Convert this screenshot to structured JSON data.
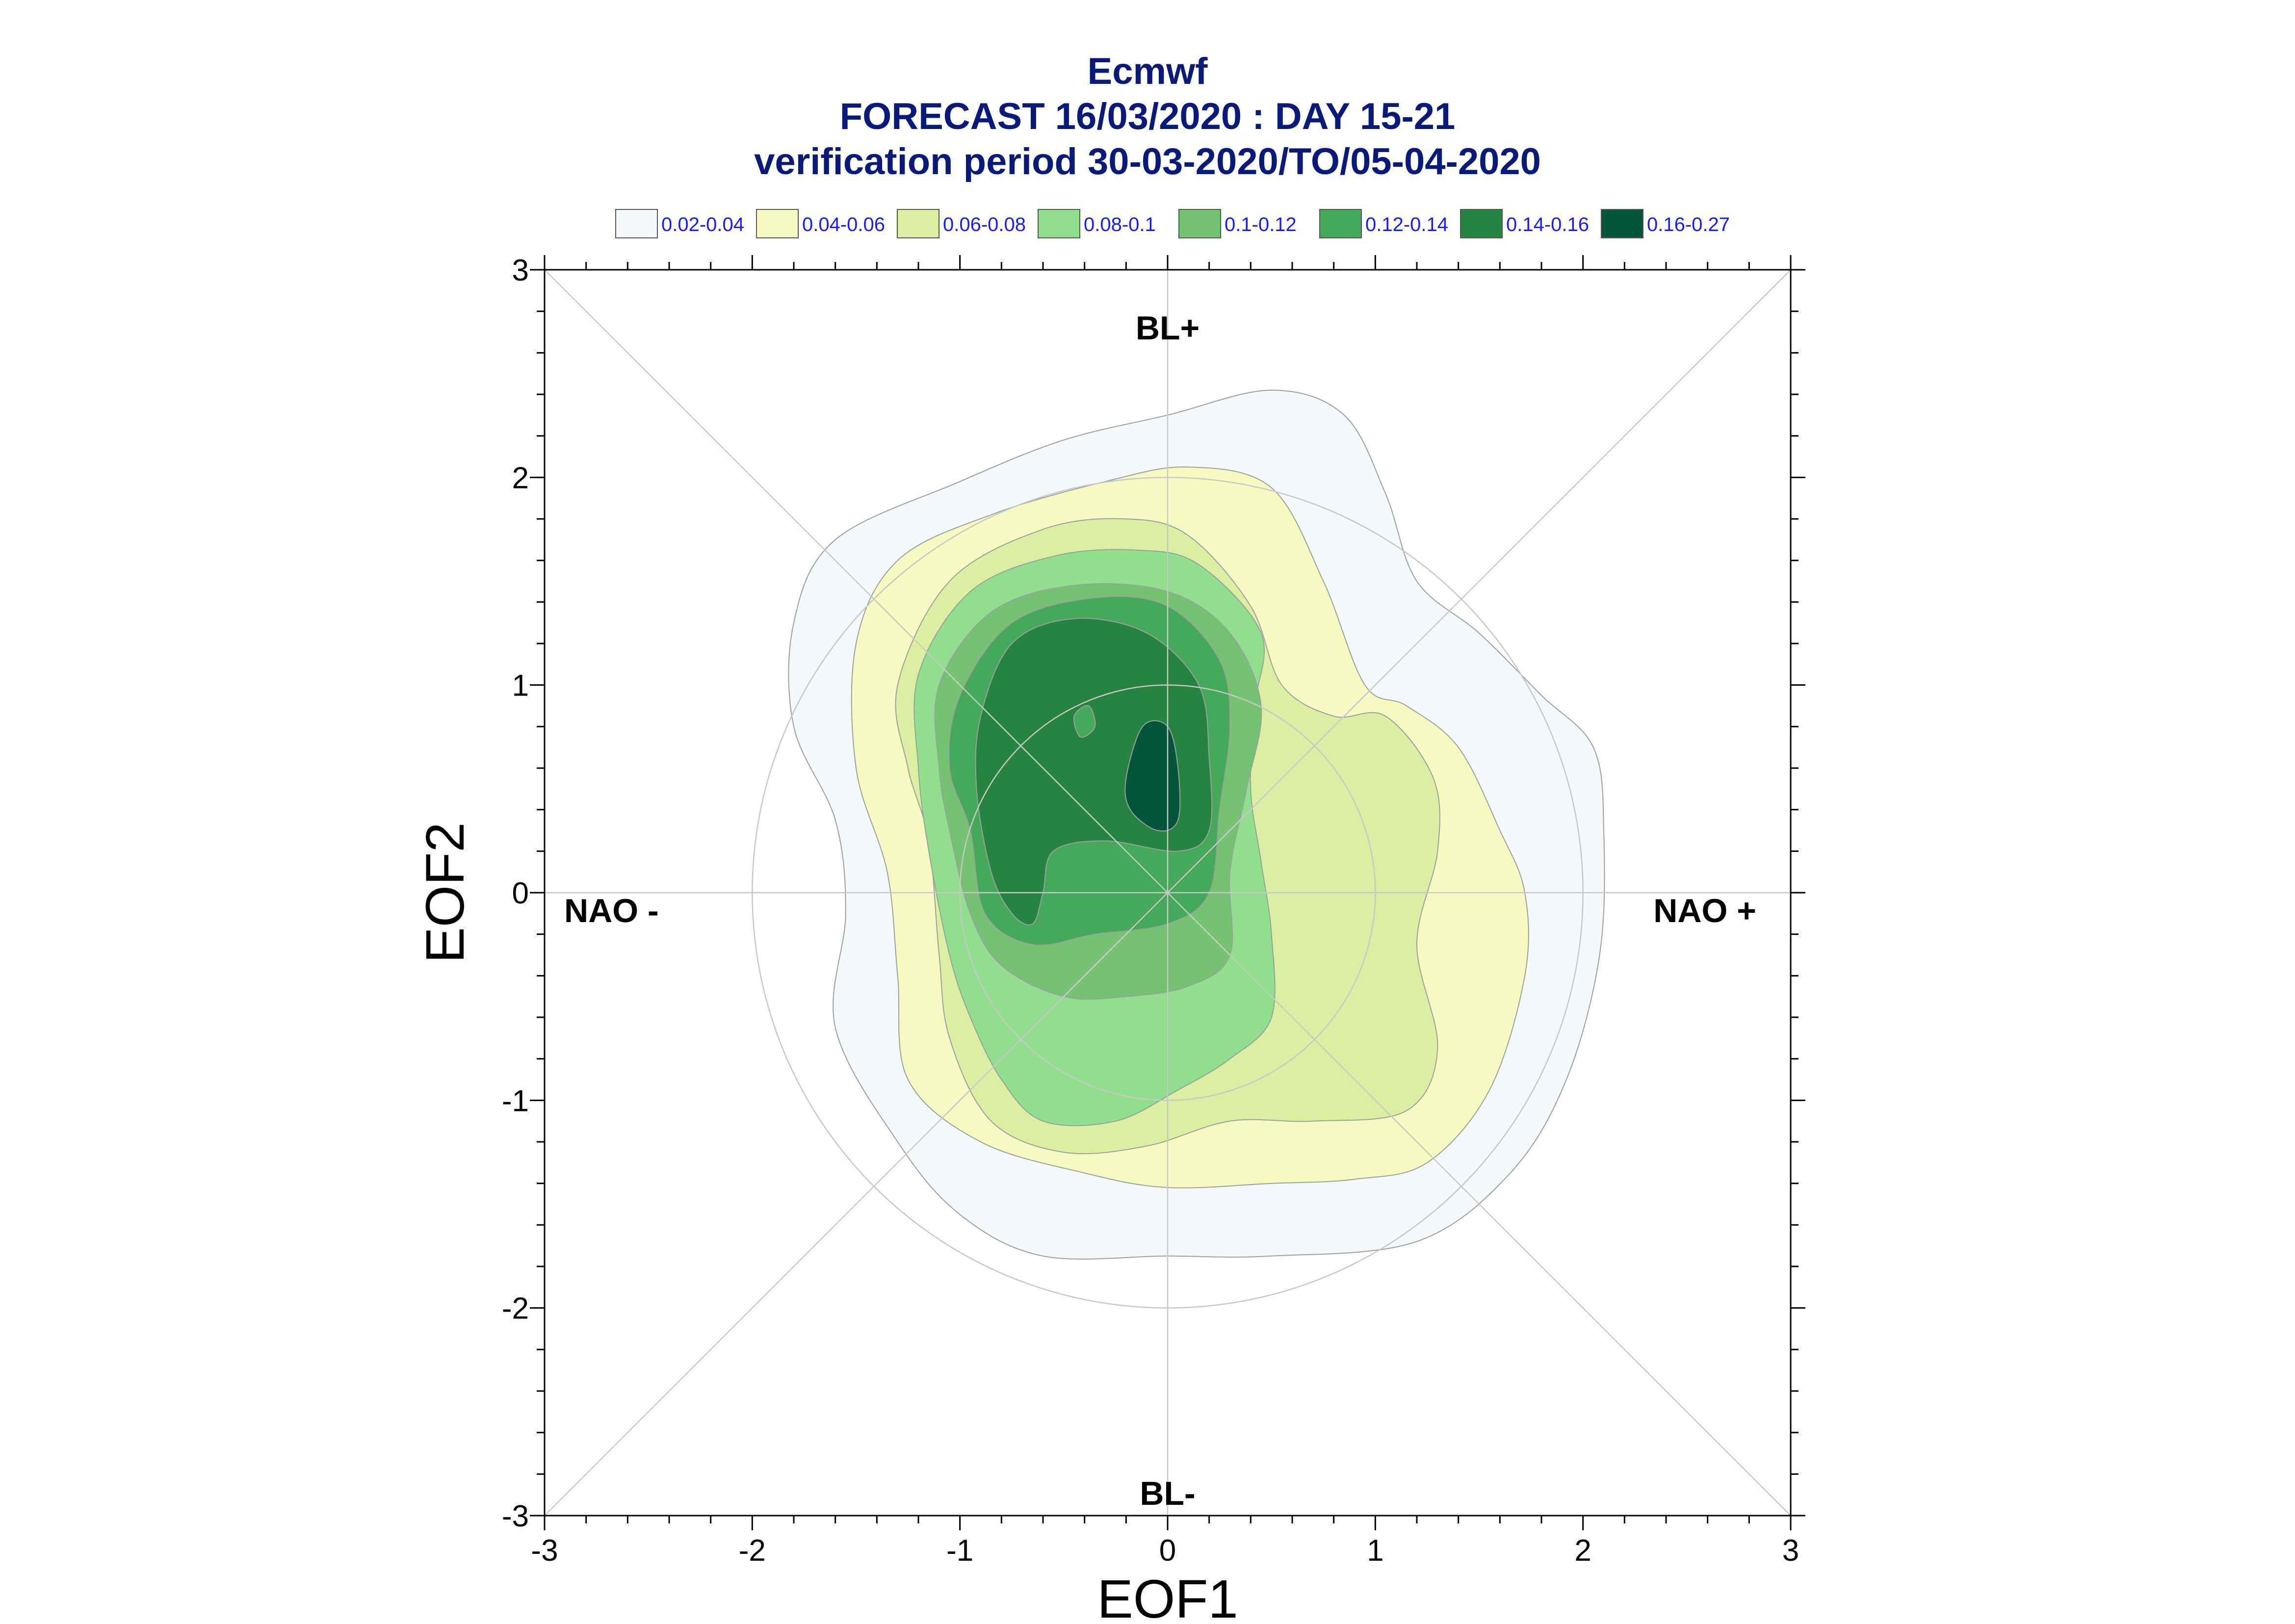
{
  "title_lines": [
    "Ecmwf",
    "FORECAST 16/03/2020 : DAY 15-21",
    "verification period 30-03-2020/TO/05-04-2020"
  ],
  "chart_data": {
    "type": "contour",
    "xlabel": "EOF1",
    "ylabel": "EOF2",
    "xlim": [
      -3,
      3
    ],
    "ylim": [
      -3,
      3
    ],
    "x_ticks": [
      "-3",
      "-2",
      "-1",
      "0",
      "1",
      "2",
      "3"
    ],
    "y_ticks": [
      "3",
      "2",
      "1",
      "0",
      "-1",
      "-2",
      "-3"
    ],
    "region_labels": {
      "top": "BL+",
      "bottom": "BL-",
      "left": "NAO -",
      "right": "NAO +"
    },
    "reference_circles_radius": [
      1,
      2
    ],
    "legend": [
      {
        "label": "0.02-0.04",
        "color": "#f4f8fb"
      },
      {
        "label": "0.04-0.06",
        "color": "#f6fac0"
      },
      {
        "label": "0.06-0.08",
        "color": "#dcee9f"
      },
      {
        "label": "0.08-0.1",
        "color": "#8fdf8c"
      },
      {
        "label": "0.1-0.12",
        "color": "#74c373"
      },
      {
        "label": "0.12-0.14",
        "color": "#44a95a"
      },
      {
        "label": "0.14-0.16",
        "color": "#268443"
      },
      {
        "label": "0.16-0.27",
        "color": "#03553b"
      }
    ],
    "contours": [
      {
        "level": "0.02-0.04",
        "points": [
          [
            -1.8,
            1.3
          ],
          [
            -1.6,
            1.7
          ],
          [
            -1.0,
            1.98
          ],
          [
            -0.5,
            2.18
          ],
          [
            0.0,
            2.3
          ],
          [
            0.5,
            2.42
          ],
          [
            0.85,
            2.3
          ],
          [
            1.05,
            1.92
          ],
          [
            1.2,
            1.5
          ],
          [
            1.5,
            1.25
          ],
          [
            1.8,
            0.95
          ],
          [
            2.05,
            0.7
          ],
          [
            2.1,
            0.3
          ],
          [
            2.08,
            -0.3
          ],
          [
            1.92,
            -0.9
          ],
          [
            1.65,
            -1.35
          ],
          [
            1.2,
            -1.68
          ],
          [
            0.5,
            -1.75
          ],
          [
            0.0,
            -1.75
          ],
          [
            -0.6,
            -1.75
          ],
          [
            -1.0,
            -1.55
          ],
          [
            -1.3,
            -1.2
          ],
          [
            -1.6,
            -0.65
          ],
          [
            -1.55,
            -0.1
          ],
          [
            -1.6,
            0.35
          ],
          [
            -1.8,
            0.8
          ]
        ]
      },
      {
        "level": "0.04-0.06",
        "points": [
          [
            -1.5,
            1.2
          ],
          [
            -1.3,
            1.6
          ],
          [
            -0.85,
            1.82
          ],
          [
            -0.3,
            1.98
          ],
          [
            0.1,
            2.05
          ],
          [
            0.5,
            1.95
          ],
          [
            0.75,
            1.5
          ],
          [
            0.95,
            1.0
          ],
          [
            1.15,
            0.9
          ],
          [
            1.4,
            0.7
          ],
          [
            1.6,
            0.3
          ],
          [
            1.72,
            0.0
          ],
          [
            1.72,
            -0.4
          ],
          [
            1.55,
            -0.95
          ],
          [
            1.25,
            -1.3
          ],
          [
            0.9,
            -1.38
          ],
          [
            0.5,
            -1.4
          ],
          [
            0.0,
            -1.42
          ],
          [
            -0.4,
            -1.35
          ],
          [
            -0.9,
            -1.2
          ],
          [
            -1.25,
            -0.9
          ],
          [
            -1.3,
            -0.4
          ],
          [
            -1.35,
            0.1
          ],
          [
            -1.5,
            0.6
          ]
        ]
      },
      {
        "level": "0.06-0.08",
        "points": [
          [
            -1.3,
            1.0
          ],
          [
            -1.05,
            1.5
          ],
          [
            -0.6,
            1.75
          ],
          [
            -0.2,
            1.8
          ],
          [
            0.1,
            1.72
          ],
          [
            0.4,
            1.38
          ],
          [
            0.55,
            1.0
          ],
          [
            0.8,
            0.85
          ],
          [
            1.05,
            0.85
          ],
          [
            1.28,
            0.55
          ],
          [
            1.3,
            0.2
          ],
          [
            1.2,
            -0.25
          ],
          [
            1.3,
            -0.75
          ],
          [
            1.15,
            -1.05
          ],
          [
            0.7,
            -1.1
          ],
          [
            0.3,
            -1.1
          ],
          [
            -0.1,
            -1.22
          ],
          [
            -0.5,
            -1.25
          ],
          [
            -0.85,
            -1.1
          ],
          [
            -1.05,
            -0.7
          ],
          [
            -1.1,
            -0.3
          ],
          [
            -1.15,
            0.25
          ],
          [
            -1.25,
            0.6
          ]
        ]
      },
      {
        "level": "0.08-0.1",
        "points": [
          [
            -1.2,
            1.05
          ],
          [
            -0.95,
            1.45
          ],
          [
            -0.55,
            1.62
          ],
          [
            -0.15,
            1.65
          ],
          [
            0.15,
            1.58
          ],
          [
            0.45,
            1.25
          ],
          [
            0.42,
            0.9
          ],
          [
            0.4,
            0.5
          ],
          [
            0.45,
            0.15
          ],
          [
            0.5,
            -0.2
          ],
          [
            0.5,
            -0.6
          ],
          [
            0.3,
            -0.8
          ],
          [
            0.05,
            -0.95
          ],
          [
            -0.25,
            -1.1
          ],
          [
            -0.6,
            -1.1
          ],
          [
            -0.8,
            -0.9
          ],
          [
            -0.95,
            -0.6
          ],
          [
            -1.05,
            -0.3
          ],
          [
            -1.15,
            0.2
          ],
          [
            -1.2,
            0.6
          ]
        ]
      },
      {
        "level": "0.1-0.12",
        "points": [
          [
            -1.1,
            1.0
          ],
          [
            -0.85,
            1.35
          ],
          [
            -0.45,
            1.48
          ],
          [
            0.0,
            1.45
          ],
          [
            0.3,
            1.25
          ],
          [
            0.45,
            0.9
          ],
          [
            0.38,
            0.5
          ],
          [
            0.3,
            0.1
          ],
          [
            0.3,
            -0.3
          ],
          [
            0.1,
            -0.45
          ],
          [
            -0.2,
            -0.5
          ],
          [
            -0.5,
            -0.5
          ],
          [
            -0.8,
            -0.35
          ],
          [
            -0.95,
            -0.1
          ],
          [
            -1.05,
            0.3
          ],
          [
            -1.1,
            0.6
          ]
        ]
      },
      {
        "level": "0.12-0.14",
        "points": [
          [
            -1.0,
            0.95
          ],
          [
            -0.75,
            1.3
          ],
          [
            -0.35,
            1.42
          ],
          [
            0.0,
            1.38
          ],
          [
            0.25,
            1.12
          ],
          [
            0.3,
            0.8
          ],
          [
            0.25,
            0.4
          ],
          [
            0.2,
            0.0
          ],
          [
            0.0,
            -0.15
          ],
          [
            -0.35,
            -0.2
          ],
          [
            -0.65,
            -0.25
          ],
          [
            -0.88,
            -0.1
          ],
          [
            -0.95,
            0.3
          ],
          [
            -1.05,
            0.6
          ]
        ]
      },
      {
        "level": "0.14-0.16",
        "points": [
          [
            -0.9,
            0.85
          ],
          [
            -0.75,
            1.2
          ],
          [
            -0.45,
            1.32
          ],
          [
            -0.1,
            1.25
          ],
          [
            0.15,
            1.0
          ],
          [
            0.2,
            0.65
          ],
          [
            0.2,
            0.3
          ],
          [
            0.05,
            0.2
          ],
          [
            -0.3,
            0.25
          ],
          [
            -0.55,
            0.2
          ],
          [
            -0.6,
            0.0
          ],
          [
            -0.65,
            -0.15
          ],
          [
            -0.75,
            -0.1
          ],
          [
            -0.85,
            0.1
          ],
          [
            -0.92,
            0.5
          ]
        ]
      },
      {
        "level": "0.16-0.27",
        "points": [
          [
            -0.2,
            0.55
          ],
          [
            -0.12,
            0.8
          ],
          [
            0.0,
            0.8
          ],
          [
            0.05,
            0.6
          ],
          [
            0.05,
            0.35
          ],
          [
            -0.05,
            0.3
          ],
          [
            -0.18,
            0.4
          ]
        ]
      },
      {
        "level": "0.12-0.14",
        "points": [
          [
            -0.45,
            0.85
          ],
          [
            -0.38,
            0.9
          ],
          [
            -0.35,
            0.8
          ],
          [
            -0.42,
            0.75
          ]
        ]
      }
    ]
  }
}
